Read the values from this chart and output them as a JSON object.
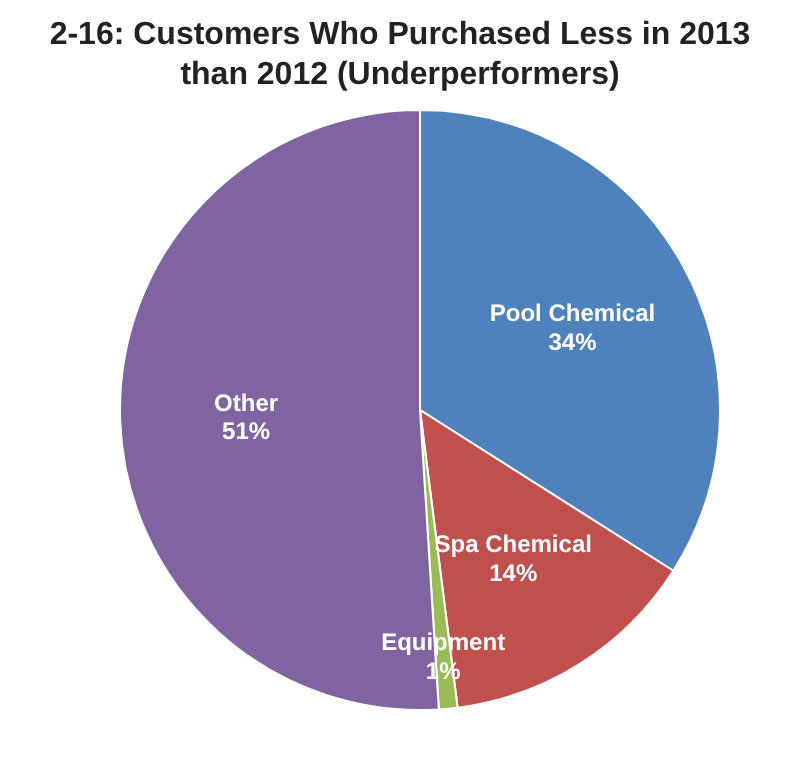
{
  "chart_data": {
    "type": "pie",
    "title": "2-16: Customers Who Purchased Less in 2013 than 2012 (Underperformers)",
    "categories": [
      "Pool Chemical",
      "Spa Chemical",
      "Equipment",
      "Other"
    ],
    "values": [
      34,
      14,
      1,
      51
    ],
    "colors": [
      "#4f81bd",
      "#c0504d",
      "#9bbb59",
      "#8064a2"
    ],
    "value_labels": [
      "34%",
      "14%",
      "1%",
      "51%"
    ]
  }
}
